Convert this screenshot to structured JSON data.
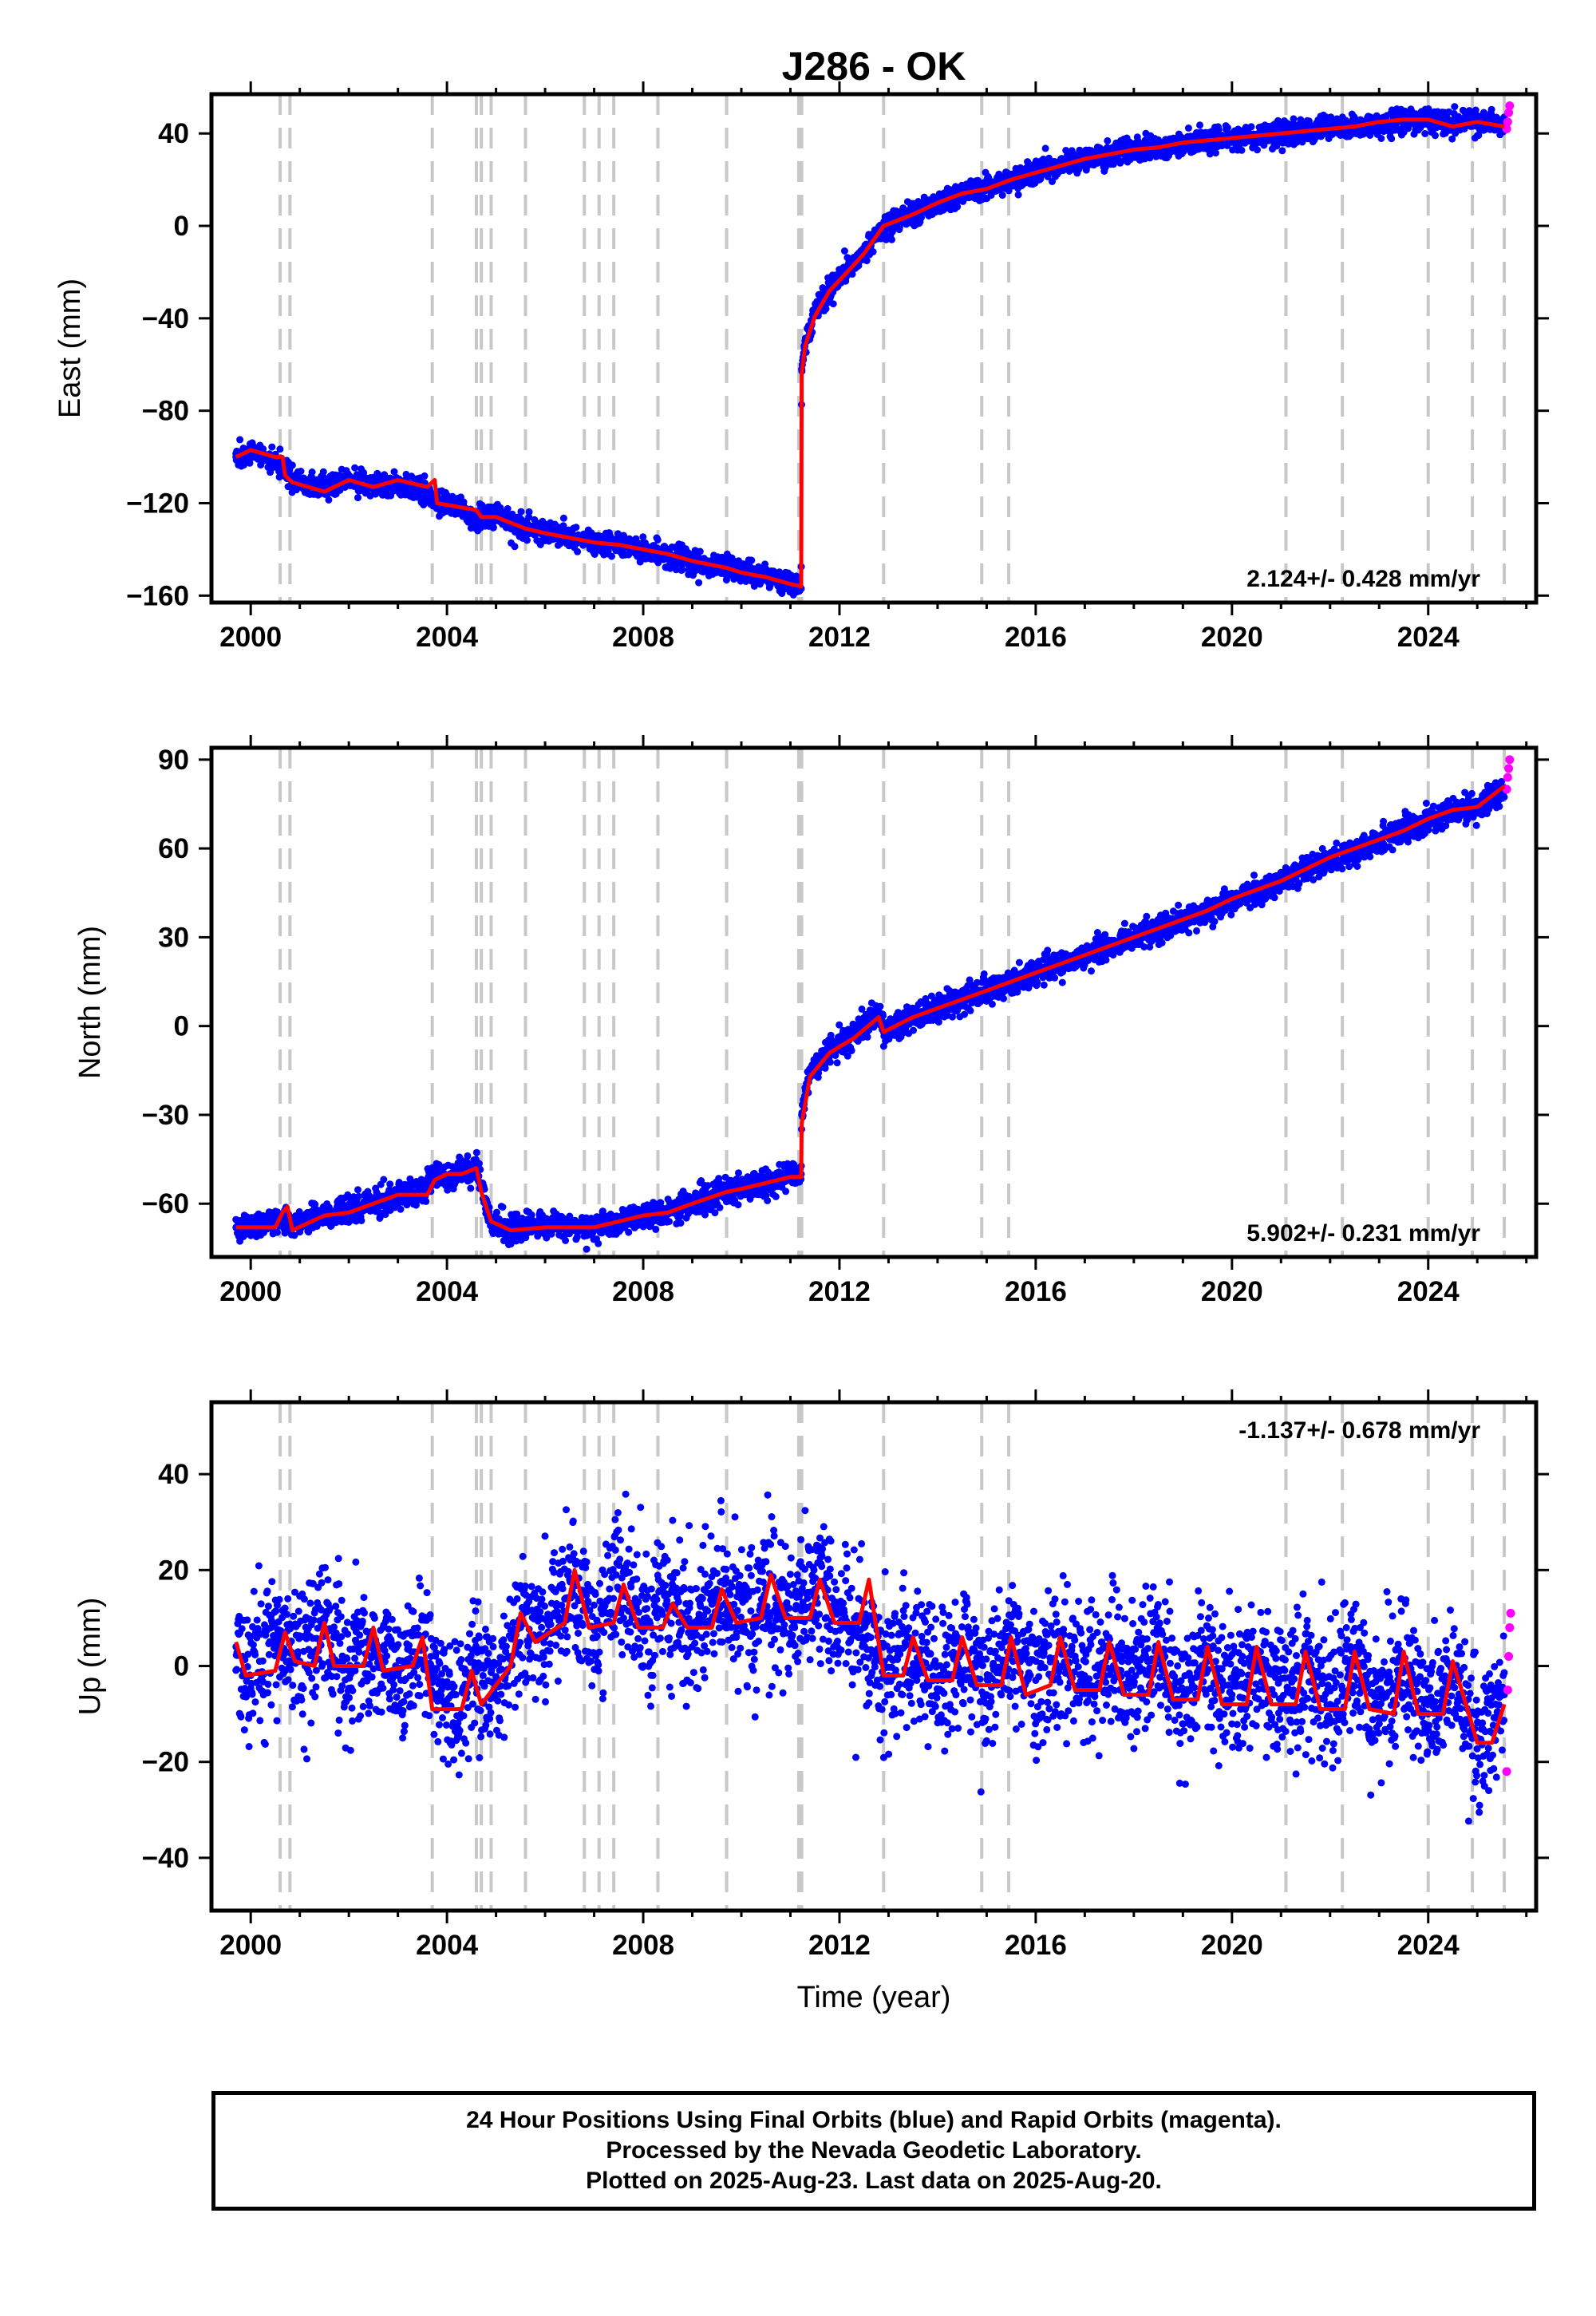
{
  "title": "J286 - OK",
  "xlabel": "Time (year)",
  "footer": {
    "line1": "24 Hour Positions Using Final Orbits (blue) and Rapid Orbits (magenta).",
    "line2": "Processed by the Nevada Geodetic Laboratory.",
    "line3": "Plotted on 2025-Aug-23. Last data on 2025-Aug-20."
  },
  "colors": {
    "final_orbits": "#0000ff",
    "rapid_orbits": "#ff00ff",
    "model": "#ff0000",
    "event_lines": "#c8c8c8"
  },
  "event_years": [
    2000.6,
    2000.8,
    2003.7,
    2004.6,
    2004.7,
    2004.9,
    2005.6,
    2006.8,
    2007.1,
    2007.4,
    2008.3,
    2009.7,
    2011.17,
    2011.23,
    2012.9,
    2014.9,
    2015.45,
    2021.1,
    2022.25,
    2024.0,
    2024.9,
    2025.55
  ],
  "chart_data": [
    {
      "type": "scatter",
      "component": "east",
      "ylabel": "East (mm)",
      "rate": "2.124+/- 0.428 mm/yr",
      "rate_position": "bottom-right",
      "xlim": [
        1999.2,
        2026.2
      ],
      "ylim": [
        -163,
        57
      ],
      "x_ticks": [
        "2000",
        "2004",
        "2008",
        "2012",
        "2016",
        "2020",
        "2024"
      ],
      "y_ticks": [
        "40",
        "0",
        "−40",
        "−80",
        "−120",
        "−160"
      ],
      "y_tick_values": [
        40,
        0,
        -40,
        -80,
        -120,
        -160
      ],
      "noise_mm": 2.5,
      "series": [
        {
          "name": "Final Orbits",
          "x": [
            1999.7,
            2000.0,
            2000.5,
            2000.65,
            2000.85,
            2001.5,
            2002.0,
            2002.5,
            2003.0,
            2003.5,
            2003.75,
            2004.0,
            2004.6,
            2005.0,
            2005.6,
            2006.0,
            2007.0,
            2007.5,
            2008.0,
            2008.5,
            2009.0,
            2009.7,
            2010.0,
            2010.5,
            2011.0,
            2011.22,
            2011.23,
            2011.3,
            2011.5,
            2011.8,
            2012.2,
            2012.5,
            2012.9,
            2013.5,
            2014.0,
            2014.5,
            2015.0,
            2015.5,
            2016.0,
            2016.5,
            2017.0,
            2017.5,
            2018.0,
            2018.5,
            2019.0,
            2019.5,
            2020.0,
            2020.5,
            2021.0,
            2021.5,
            2022.0,
            2022.5,
            2023.0,
            2023.5,
            2024.0,
            2024.5,
            2025.0,
            2025.55
          ],
          "y": [
            -100,
            -98,
            -102,
            -105,
            -111,
            -112,
            -110,
            -112,
            -112,
            -115,
            -120,
            -120,
            -126,
            -126,
            -131,
            -132,
            -137,
            -138,
            -140,
            -142,
            -145,
            -148,
            -150,
            -151,
            -155,
            -157,
            -62,
            -50,
            -38,
            -27,
            -18,
            -12,
            0,
            5,
            10,
            14,
            17,
            20,
            23,
            26,
            29,
            31,
            33,
            34,
            36,
            37,
            38,
            39,
            40,
            41,
            42,
            43,
            44,
            45,
            46,
            44,
            45,
            44
          ]
        },
        {
          "name": "Rapid Orbits",
          "x": [
            2025.6,
            2025.62,
            2025.64,
            2025.66
          ],
          "y": [
            42,
            45,
            49,
            52
          ]
        },
        {
          "name": "Model",
          "x": [
            1999.7,
            2000.0,
            2000.5,
            2000.65,
            2000.7,
            2000.85,
            2001.5,
            2002.0,
            2002.5,
            2003.0,
            2003.6,
            2003.75,
            2003.8,
            2004.6,
            2004.7,
            2005.0,
            2005.6,
            2006.0,
            2007.0,
            2007.5,
            2008.0,
            2008.5,
            2009.0,
            2009.7,
            2010.0,
            2010.5,
            2011.0,
            2011.22,
            2011.23,
            2011.3,
            2011.5,
            2011.8,
            2012.2,
            2012.5,
            2012.9,
            2013.5,
            2014.0,
            2014.5,
            2015.0,
            2015.5,
            2016.0,
            2016.5,
            2017.0,
            2017.5,
            2018.0,
            2018.5,
            2019.0,
            2019.5,
            2020.0,
            2020.5,
            2021.0,
            2021.5,
            2022.0,
            2022.5,
            2023.0,
            2023.5,
            2024.0,
            2024.5,
            2025.0,
            2025.55
          ],
          "y": [
            -100,
            -97,
            -100,
            -100,
            -108,
            -111,
            -115,
            -110,
            -113,
            -110,
            -113,
            -110,
            -120,
            -123,
            -126,
            -126,
            -131,
            -133,
            -137,
            -138,
            -140,
            -142,
            -145,
            -148,
            -150,
            -152,
            -155,
            -156,
            -64,
            -52,
            -39,
            -28,
            -19,
            -12,
            0,
            5,
            10,
            14,
            16,
            20,
            23,
            26,
            29,
            31,
            33,
            34,
            36,
            37,
            38,
            39,
            40,
            41,
            42,
            43,
            45,
            46,
            46,
            43,
            45,
            43
          ]
        }
      ]
    },
    {
      "type": "scatter",
      "component": "north",
      "ylabel": "North (mm)",
      "rate": "5.902+/- 0.231 mm/yr",
      "rate_position": "bottom-right",
      "xlim": [
        1999.2,
        2026.2
      ],
      "ylim": [
        -78,
        94
      ],
      "x_ticks": [
        "2000",
        "2004",
        "2008",
        "2012",
        "2016",
        "2020",
        "2024"
      ],
      "y_ticks": [
        "90",
        "60",
        "30",
        "0",
        "−30",
        "−60"
      ],
      "y_tick_values": [
        90,
        60,
        30,
        0,
        -30,
        -60
      ],
      "noise_mm": 2.2,
      "series": [
        {
          "name": "Final Orbits",
          "x": [
            1999.7,
            2000.0,
            2000.6,
            2000.85,
            2001.5,
            2002.0,
            2002.5,
            2003.0,
            2003.5,
            2003.75,
            2004.0,
            2004.3,
            2004.6,
            2004.7,
            2004.9,
            2005.3,
            2006.0,
            2007.0,
            2007.5,
            2008.0,
            2008.5,
            2009.0,
            2009.7,
            2010.0,
            2010.5,
            2011.0,
            2011.22,
            2011.23,
            2011.4,
            2011.8,
            2012.3,
            2012.8,
            2012.9,
            2013.5,
            2014.0,
            2014.5,
            2015.0,
            2015.5,
            2016.0,
            2016.5,
            2017.0,
            2017.5,
            2018.0,
            2018.5,
            2019.0,
            2019.5,
            2020.0,
            2020.5,
            2021.0,
            2021.5,
            2022.0,
            2022.5,
            2023.0,
            2023.5,
            2024.0,
            2024.5,
            2025.0,
            2025.55
          ],
          "y": [
            -68,
            -68,
            -65,
            -67,
            -64,
            -62,
            -60,
            -58,
            -55,
            -50,
            -51,
            -50,
            -47,
            -55,
            -66,
            -69,
            -67,
            -68,
            -66,
            -64,
            -63,
            -60,
            -56,
            -55,
            -53,
            -50,
            -50,
            -30,
            -15,
            -8,
            -3,
            5,
            -2,
            3,
            6,
            9,
            12,
            15,
            18,
            21,
            24,
            27,
            30,
            33,
            36,
            39,
            42,
            45,
            49,
            53,
            56,
            59,
            63,
            66,
            70,
            72,
            74,
            80
          ]
        },
        {
          "name": "Rapid Orbits",
          "x": [
            2025.6,
            2025.62,
            2025.64,
            2025.66
          ],
          "y": [
            80,
            84,
            87,
            90
          ]
        },
        {
          "name": "Model",
          "x": [
            1999.7,
            2000.0,
            2000.5,
            2000.65,
            2000.75,
            2000.85,
            2001.5,
            2002.0,
            2002.5,
            2003.0,
            2003.6,
            2003.75,
            2004.0,
            2004.3,
            2004.6,
            2004.7,
            2004.9,
            2005.3,
            2006.0,
            2007.0,
            2007.5,
            2008.0,
            2008.5,
            2009.0,
            2009.7,
            2010.0,
            2010.5,
            2011.0,
            2011.22,
            2011.23,
            2011.4,
            2011.8,
            2012.3,
            2012.8,
            2012.9,
            2013.5,
            2014.0,
            2014.5,
            2015.0,
            2015.5,
            2016.0,
            2016.5,
            2017.0,
            2017.5,
            2018.0,
            2018.5,
            2019.0,
            2019.5,
            2020.0,
            2020.5,
            2021.0,
            2021.5,
            2022.0,
            2022.5,
            2023.0,
            2023.5,
            2024.0,
            2024.5,
            2025.0,
            2025.55
          ],
          "y": [
            -68,
            -68,
            -68,
            -63,
            -61,
            -69,
            -64,
            -63,
            -60,
            -57,
            -57,
            -52,
            -50,
            -50,
            -48,
            -56,
            -66,
            -69,
            -68,
            -68,
            -66,
            -64,
            -63,
            -60,
            -56,
            -55,
            -53,
            -51,
            -51,
            -33,
            -17,
            -9,
            -4,
            3,
            -2,
            3,
            6,
            9,
            12,
            15,
            18,
            21,
            24,
            27,
            30,
            33,
            36,
            39,
            43,
            46,
            49,
            53,
            57,
            60,
            63,
            66,
            70,
            73,
            74,
            81
          ]
        }
      ]
    },
    {
      "type": "scatter",
      "component": "up",
      "ylabel": "Up (mm)",
      "rate": "-1.137+/- 0.678 mm/yr",
      "rate_position": "top-right",
      "xlim": [
        1999.2,
        2026.2
      ],
      "ylim": [
        -51,
        55
      ],
      "x_ticks": [
        "2000",
        "2004",
        "2008",
        "2012",
        "2016",
        "2020",
        "2024"
      ],
      "y_ticks": [
        "40",
        "20",
        "0",
        "−20",
        "−40"
      ],
      "y_tick_values": [
        40,
        20,
        0,
        -20,
        -40
      ],
      "noise_mm": 7,
      "series": [
        {
          "name": "Final Orbits",
          "x": [
            1999.7,
            2000.0,
            2000.5,
            2001.0,
            2001.5,
            2002.0,
            2002.5,
            2003.0,
            2003.5,
            2004.0,
            2004.5,
            2005.0,
            2005.5,
            2006.0,
            2006.5,
            2007.0,
            2007.5,
            2008.0,
            2008.5,
            2009.0,
            2009.5,
            2010.0,
            2010.5,
            2011.0,
            2011.5,
            2012.0,
            2012.5,
            2013.0,
            2013.5,
            2014.0,
            2014.5,
            2015.0,
            2015.5,
            2016.0,
            2016.5,
            2017.0,
            2017.5,
            2018.0,
            2018.5,
            2019.0,
            2019.5,
            2020.0,
            2020.5,
            2021.0,
            2021.5,
            2022.0,
            2022.5,
            2023.0,
            2023.5,
            2024.0,
            2024.5,
            2025.0,
            2025.55
          ],
          "y": [
            4,
            -2,
            5,
            1,
            8,
            -1,
            6,
            -2,
            4,
            -8,
            -2,
            -6,
            8,
            6,
            18,
            8,
            16,
            8,
            12,
            8,
            16,
            9,
            16,
            10,
            16,
            9,
            8,
            -2,
            4,
            -3,
            3,
            -6,
            5,
            -3,
            3,
            -4,
            2,
            -4,
            2,
            -5,
            1,
            -6,
            0,
            -7,
            0,
            -8,
            0,
            -9,
            -1,
            -10,
            -2,
            -15,
            -6
          ]
        },
        {
          "name": "Rapid Orbits",
          "x": [
            2025.6,
            2025.62,
            2025.64,
            2025.66,
            2025.68
          ],
          "y": [
            -22,
            -5,
            2,
            8,
            11
          ]
        },
        {
          "name": "Model",
          "x": [
            1999.7,
            1999.9,
            2000.5,
            2000.7,
            2000.9,
            2001.3,
            2001.5,
            2001.7,
            2002.3,
            2002.5,
            2002.7,
            2003.3,
            2003.5,
            2003.7,
            2004.3,
            2004.5,
            2004.7,
            2005.3,
            2005.5,
            2005.8,
            2006.4,
            2006.6,
            2006.9,
            2007.4,
            2007.6,
            2007.9,
            2008.4,
            2008.6,
            2008.9,
            2009.4,
            2009.6,
            2009.9,
            2010.4,
            2010.6,
            2010.9,
            2011.4,
            2011.6,
            2011.9,
            2012.4,
            2012.6,
            2012.9,
            2013.3,
            2013.5,
            2013.8,
            2014.3,
            2014.5,
            2014.8,
            2015.3,
            2015.5,
            2015.8,
            2016.3,
            2016.5,
            2016.8,
            2017.3,
            2017.5,
            2017.8,
            2018.3,
            2018.5,
            2018.8,
            2019.3,
            2019.5,
            2019.8,
            2020.3,
            2020.5,
            2020.8,
            2021.3,
            2021.5,
            2021.8,
            2022.3,
            2022.5,
            2022.8,
            2023.3,
            2023.5,
            2023.8,
            2024.3,
            2024.5,
            2024.8,
            2025.0,
            2025.3,
            2025.55
          ],
          "y": [
            5,
            -2,
            -1,
            7,
            1,
            0,
            9,
            0,
            0,
            8,
            -1,
            0,
            6,
            -9,
            -9,
            -1,
            -8,
            0,
            11,
            5,
            9,
            20,
            8,
            9,
            17,
            8,
            8,
            13,
            8,
            8,
            16,
            9,
            10,
            19,
            10,
            10,
            18,
            9,
            9,
            18,
            -2,
            -2,
            6,
            -3,
            -3,
            6,
            -4,
            -4,
            6,
            -6,
            -4,
            6,
            -5,
            -5,
            5,
            -6,
            -6,
            5,
            -7,
            -7,
            4,
            -8,
            -8,
            4,
            -8,
            -8,
            3,
            -9,
            -9,
            3,
            -9,
            -10,
            3,
            -10,
            -10,
            1,
            -9,
            -16,
            -16,
            -8
          ]
        }
      ]
    }
  ]
}
